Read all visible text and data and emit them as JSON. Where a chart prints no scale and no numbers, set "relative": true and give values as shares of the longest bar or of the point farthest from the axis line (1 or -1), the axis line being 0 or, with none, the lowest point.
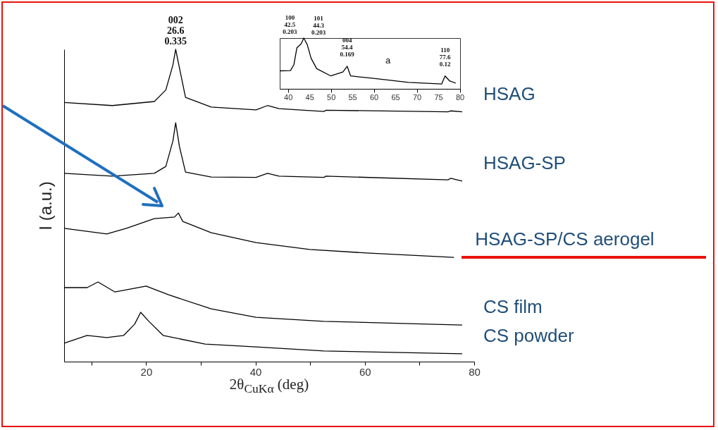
{
  "chart_data": [
    {
      "type": "line",
      "relative": true,
      "xlabel": "2θ$_{CuKα}$ (deg)",
      "ylabel": "I (a.u.)",
      "xlim": [
        5,
        80
      ],
      "xticks": [
        {
          "value": 10,
          "label": null
        },
        20,
        {
          "value": 30,
          "label": null
        },
        40,
        {
          "value": 50,
          "label": null
        },
        60,
        {
          "value": 70,
          "label": null
        },
        80
      ],
      "series": [
        {
          "name": "HSAG",
          "color": "#000000",
          "x": [
            5,
            13.8,
            21.5,
            23.6,
            24.9,
            25.4,
            26.1,
            27.2,
            31.9,
            40.1,
            42.2,
            44.3,
            52.5,
            52.9,
            75.2,
            75.7,
            77.8
          ],
          "values": [
            0.83,
            0.82,
            0.833,
            0.87,
            0.95,
            1.0,
            0.94,
            0.846,
            0.815,
            0.806,
            0.82,
            0.81,
            0.801,
            0.805,
            0.8,
            0.803,
            0.8
          ]
        },
        {
          "name": "HSAG-SP",
          "color": "#000000",
          "x": [
            5,
            13.8,
            21.5,
            23.6,
            24.9,
            25.4,
            26.1,
            27.2,
            31.9,
            40.1,
            42.2,
            44.3,
            52.5,
            52.9,
            75.2,
            75.7,
            77.8
          ],
          "values": [
            0.603,
            0.594,
            0.603,
            0.625,
            0.707,
            0.765,
            0.688,
            0.607,
            0.591,
            0.59,
            0.603,
            0.594,
            0.59,
            0.594,
            0.582,
            0.587,
            0.578
          ]
        },
        {
          "name": "HSAG-SP/CS aerogel",
          "color": "#000000",
          "x": [
            5,
            12.8,
            16.4,
            21.5,
            25.2,
            25.9,
            26.7,
            31.9,
            40.1,
            49.9,
            60.3,
            76.3
          ],
          "values": [
            0.427,
            0.409,
            0.427,
            0.458,
            0.463,
            0.476,
            0.449,
            0.413,
            0.381,
            0.359,
            0.348,
            0.334
          ]
        },
        {
          "name": "CS film",
          "color": "#000000",
          "x": [
            5,
            9.2,
            11.2,
            14.3,
            20,
            24.1,
            31.9,
            40.1,
            52.5,
            77.8
          ],
          "values": [
            0.237,
            0.237,
            0.255,
            0.223,
            0.242,
            0.214,
            0.169,
            0.142,
            0.129,
            0.117
          ]
        },
        {
          "name": "CS powder",
          "color": "#000000",
          "x": [
            5,
            9.2,
            12.8,
            15.9,
            17.9,
            19,
            20.5,
            23.1,
            30.8,
            40.1,
            52.5,
            77.8
          ],
          "values": [
            0.059,
            0.084,
            0.077,
            0.084,
            0.12,
            0.158,
            0.129,
            0.084,
            0.056,
            0.047,
            0.034,
            0.025
          ]
        }
      ],
      "annotations": [
        {
          "text": "002\n26.6\n0.335",
          "x": 25.4,
          "y": 1.0
        }
      ]
    },
    {
      "type": "line",
      "relative": true,
      "xlim": [
        38,
        80
      ],
      "xticks": [
        40,
        45,
        50,
        55,
        60,
        65,
        70,
        75,
        80
      ],
      "x": [
        38,
        40.5,
        41.3,
        42,
        43,
        43.6,
        44.4,
        45.3,
        46.6,
        49.9,
        52.7,
        53.7,
        54.5,
        59.8,
        68,
        75.7,
        76.5,
        77.5,
        79
      ],
      "series": [
        {
          "color": "#000000",
          "values": [
            0.354,
            0.36,
            0.476,
            0.81,
            0.89,
            1.0,
            0.873,
            0.603,
            0.397,
            0.254,
            0.333,
            0.444,
            0.254,
            0.206,
            0.127,
            0.095,
            0.254,
            0.159,
            0.111
          ]
        }
      ],
      "annotations": [
        {
          "text": "100\n42.5\n0.203",
          "x": 43,
          "y": 0.89
        },
        {
          "text": "101\n44.3\n0.203",
          "x": 44.4,
          "y": 0.873
        },
        {
          "text": "004\n54.4\n0.169",
          "x": 53.7,
          "y": 0.444
        },
        {
          "text": "110\n77.6\n0.12",
          "x": 76.5,
          "y": 0.254
        },
        "a"
      ]
    }
  ]
}
